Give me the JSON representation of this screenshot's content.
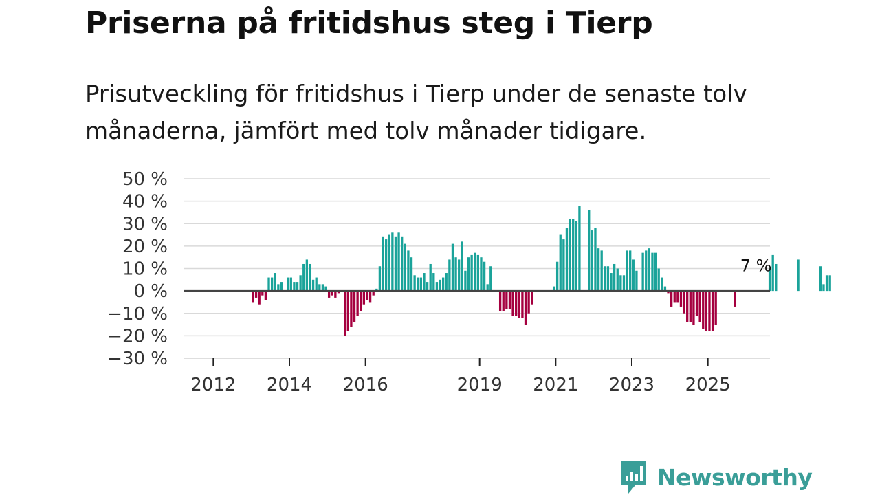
{
  "title": "Priserna på fritidshus steg i Tierp",
  "subtitle": "Prisutveckling för fritidshus i Tierp under de senaste tolv månaderna, jämfört med tolv månader tidigare.",
  "brand": {
    "name": "Newsworthy",
    "color": "#3a9e98"
  },
  "colors": {
    "positive": "#1aa39a",
    "negative": "#a5003f",
    "grid": "#d9d9d9",
    "zero": "#444444"
  },
  "chart_data": {
    "type": "bar",
    "ylim": [
      -30,
      50
    ],
    "y_ticks": [
      50,
      40,
      30,
      20,
      10,
      0,
      -10,
      -20,
      -30
    ],
    "y_tick_labels": [
      "50 %",
      "40 %",
      "30 %",
      "20 %",
      "10 %",
      "0 %",
      "−10 %",
      "−20 %",
      "−30 %"
    ],
    "x_start": 2011.0,
    "x_end": 2026.7,
    "x_ticks": [
      2012,
      2014,
      2016,
      2019,
      2021,
      2023,
      2025
    ],
    "x_tick_labels": [
      "2012",
      "2014",
      "2016",
      "2019",
      "2021",
      "2023",
      "2025"
    ],
    "annotation": {
      "text": "7 %",
      "x": 2026.3,
      "y": 7
    },
    "ylabel": "",
    "xlabel": "",
    "grid": true,
    "values_by_month": [
      null,
      null,
      null,
      null,
      null,
      null,
      null,
      null,
      null,
      null,
      null,
      null,
      null,
      null,
      null,
      null,
      null,
      null,
      null,
      null,
      null,
      null,
      null,
      null,
      -5,
      -3,
      -6,
      -2,
      -4,
      6,
      6,
      8,
      3,
      4,
      null,
      6,
      6,
      4,
      4,
      7,
      12,
      14,
      12,
      5,
      6,
      3,
      3,
      2,
      -3,
      -2,
      -3,
      -1,
      null,
      -20,
      -18,
      -16,
      -14,
      -11,
      -9,
      -6,
      -4,
      -5,
      -2,
      1,
      11,
      24,
      23,
      25,
      26,
      24,
      26,
      24,
      21,
      18,
      15,
      7,
      6,
      6,
      8,
      4,
      12,
      8,
      4,
      5,
      6,
      8,
      14,
      21,
      15,
      14,
      22,
      9,
      15,
      16,
      17,
      16,
      15,
      13,
      3,
      11,
      null,
      null,
      -9,
      -9,
      -8,
      -8,
      -11,
      -11,
      -12,
      -12,
      -15,
      -10,
      -6,
      null,
      null,
      null,
      null,
      null,
      null,
      2,
      13,
      25,
      23,
      28,
      32,
      32,
      31,
      38,
      null,
      null,
      36,
      27,
      28,
      19,
      18,
      11,
      11,
      8,
      12,
      10,
      7,
      7,
      18,
      18,
      14,
      9,
      null,
      17,
      18,
      19,
      17,
      17,
      10,
      6,
      2,
      -1,
      -7,
      -5,
      -5,
      -7,
      -10,
      -14,
      -14,
      -15,
      -11,
      -14,
      -17,
      -18,
      -18,
      -18,
      -15,
      null,
      null,
      null,
      null,
      null,
      -7,
      null,
      null,
      null,
      null,
      null,
      null,
      null,
      null,
      null,
      null,
      10,
      16,
      12,
      null,
      null,
      null,
      null,
      null,
      null,
      14,
      null,
      null,
      null,
      null,
      null,
      null,
      11,
      3,
      7,
      7
    ]
  }
}
